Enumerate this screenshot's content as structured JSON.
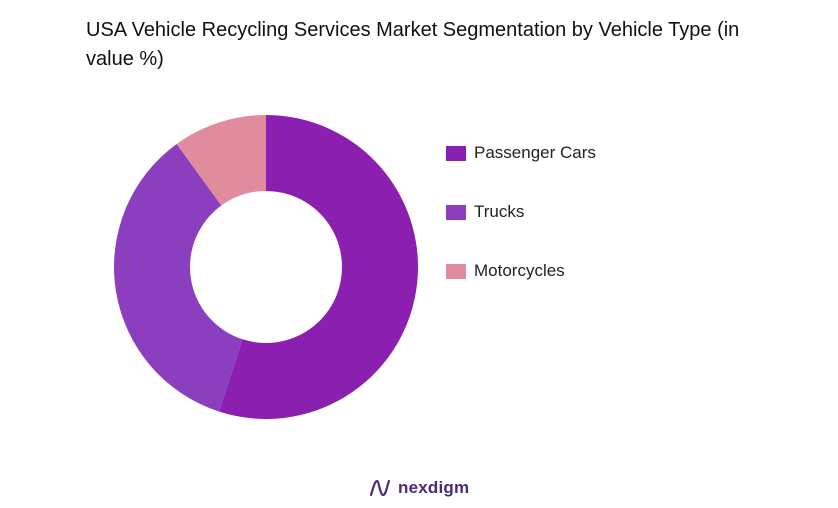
{
  "chart_data": {
    "type": "pie",
    "variant": "donut",
    "title": "USA Vehicle Recycling Services Market Segmentation by Vehicle Type (in value %)",
    "categories": [
      "Passenger Cars",
      "Trucks",
      "Motorcycles"
    ],
    "values": [
      55,
      35,
      10
    ],
    "colors": [
      "#8b1faf",
      "#8b3fbf",
      "#e08c9e"
    ],
    "legend_position": "right",
    "start_angle": "12 o'clock",
    "direction": "clockwise"
  },
  "brand": {
    "name": "nexdigm",
    "icon": "nexdigm-logo-icon"
  }
}
